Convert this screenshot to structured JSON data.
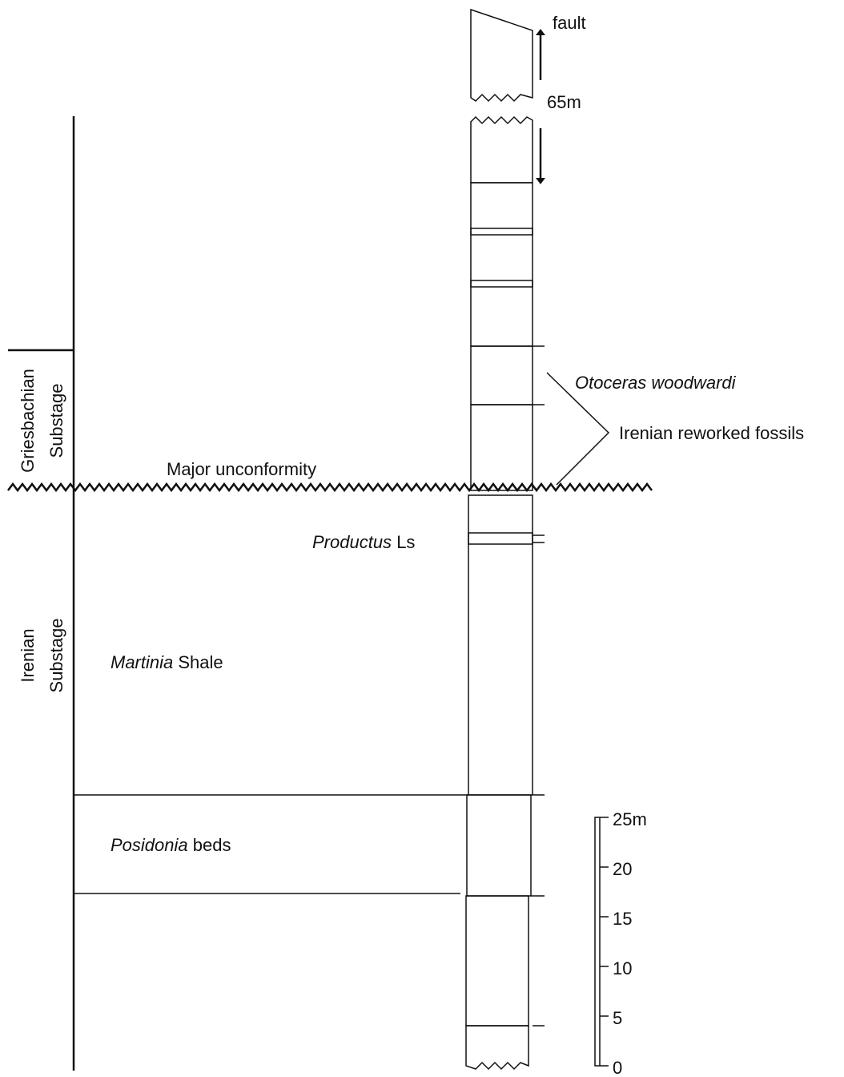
{
  "column": {
    "fault": "fault",
    "thickness": "65m"
  },
  "substages": {
    "griesbachian": [
      "Griesbachian",
      "Substage"
    ],
    "irenian": [
      "Irenian",
      "Substage"
    ]
  },
  "unconformity": "Major unconformity",
  "fossils": {
    "otoceras": "Otoceras woodwardi",
    "reworked": "Irenian reworked fossils"
  },
  "formations": {
    "productus": {
      "name": "Productus",
      "rest": "Ls"
    },
    "martinia": {
      "name": "Martinia",
      "rest": "Shale"
    },
    "posidonia": {
      "name": "Posidonia",
      "rest": "beds"
    }
  },
  "scale": {
    "labels": [
      "25m",
      "20",
      "15",
      "10",
      "5",
      "0"
    ]
  }
}
